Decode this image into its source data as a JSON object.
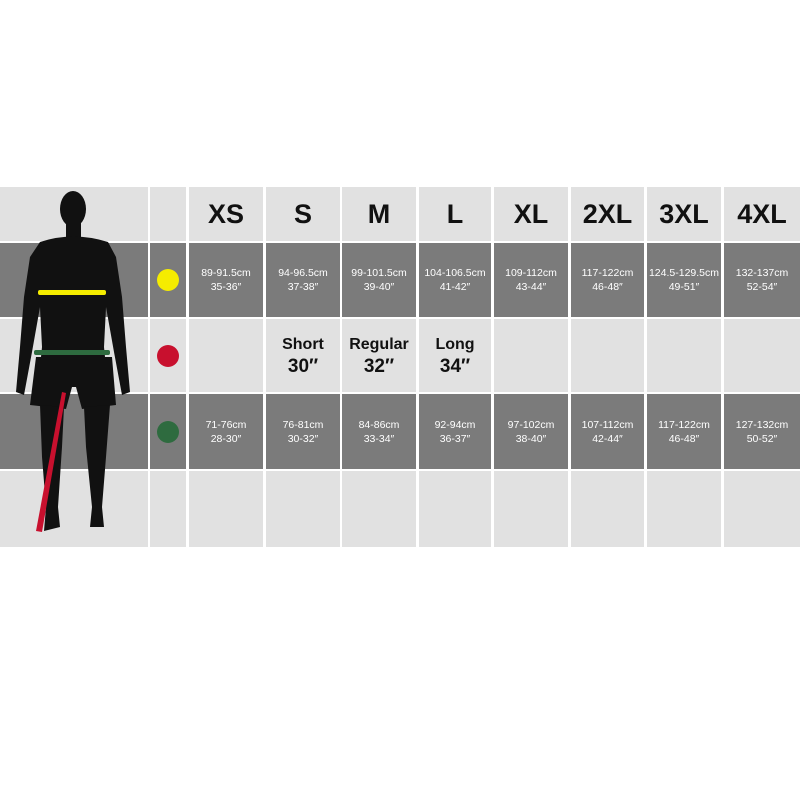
{
  "sizes": [
    "XS",
    "S",
    "M",
    "L",
    "XL",
    "2XL",
    "3XL",
    "4XL"
  ],
  "colors": {
    "chest": "#f5ec00",
    "inseam": "#c8102e",
    "waist": "#2e6b3f",
    "dark_row": "#7b7b7b",
    "light_row": "#e1e1e1"
  },
  "icons": {
    "figure": "male-silhouette-icon",
    "chest_marker": "yellow-dot-icon",
    "inseam_marker": "red-dot-icon",
    "waist_marker": "green-dot-icon"
  },
  "chest": [
    {
      "cm": "89-91.5cm",
      "in": "35-36″"
    },
    {
      "cm": "94-96.5cm",
      "in": "37-38″"
    },
    {
      "cm": "99-101.5cm",
      "in": "39-40″"
    },
    {
      "cm": "104-106.5cm",
      "in": "41-42″"
    },
    {
      "cm": "109-112cm",
      "in": "43-44″"
    },
    {
      "cm": "117-122cm",
      "in": "46-48″"
    },
    {
      "cm": "124.5-129.5cm",
      "in": "49-51″"
    },
    {
      "cm": "132-137cm",
      "in": "52-54″"
    }
  ],
  "inseam": [
    {
      "label": "",
      "value": ""
    },
    {
      "label": "Short",
      "value": "30″"
    },
    {
      "label": "Regular",
      "value": "32″"
    },
    {
      "label": "Long",
      "value": "34″"
    },
    {
      "label": "",
      "value": ""
    },
    {
      "label": "",
      "value": ""
    },
    {
      "label": "",
      "value": ""
    },
    {
      "label": "",
      "value": ""
    }
  ],
  "waist": [
    {
      "cm": "71-76cm",
      "in": "28-30″"
    },
    {
      "cm": "76-81cm",
      "in": "30-32″"
    },
    {
      "cm": "84-86cm",
      "in": "33-34″"
    },
    {
      "cm": "92-94cm",
      "in": "36-37″"
    },
    {
      "cm": "97-102cm",
      "in": "38-40″"
    },
    {
      "cm": "107-112cm",
      "in": "42-44″"
    },
    {
      "cm": "117-122cm",
      "in": "46-48″"
    },
    {
      "cm": "127-132cm",
      "in": "50-52″"
    }
  ]
}
